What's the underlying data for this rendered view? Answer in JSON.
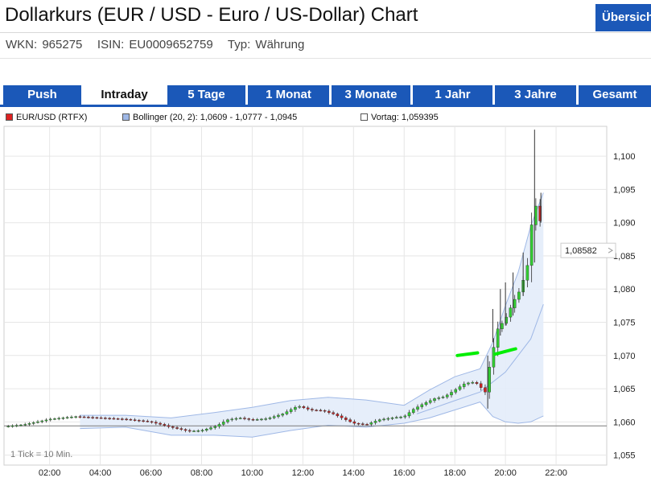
{
  "header": {
    "title": "Dollarkurs (EUR / USD - Euro / US-Dollar) Chart",
    "overview_label": "Übersicht",
    "wkn": "WKN: 965275",
    "isin": "ISIN: EU0009652759",
    "typ": "Typ: Währung"
  },
  "tabs": [
    "Push",
    "Intraday",
    "5 Tage",
    "1 Monat",
    "3 Monate",
    "1 Jahr",
    "3 Jahre",
    "Gesamt"
  ],
  "active_tab": "Intraday",
  "colors": {
    "tab_blue": "#1b58b8",
    "candle_up": "#33cc33",
    "candle_down": "#cc2222",
    "bollinger_fill": "#e3ecf9",
    "bollinger_line": "#9fb8e6",
    "prev_close_line": "#888888",
    "highlight_green": "#00ee00"
  },
  "chart_data": {
    "type": "candlestick",
    "legend": [
      {
        "label": "EUR/USD (RTFX)",
        "color": "#dd2222"
      },
      {
        "label": "Bollinger (20, 2): 1,0609 - 1,0777 - 1,0945",
        "color": "#9fb8e6"
      },
      {
        "label": "Vortag: 1,059395",
        "color": "#ffffff"
      }
    ],
    "y_ticks": [
      "1,055",
      "1,060",
      "1,065",
      "1,070",
      "1,075",
      "1,080",
      "1,085",
      "1,090",
      "1,095",
      "1,100"
    ],
    "y_tick_values": [
      1.055,
      1.06,
      1.065,
      1.07,
      1.075,
      1.08,
      1.085,
      1.09,
      1.095,
      1.1
    ],
    "x_ticks": [
      "02:00",
      "04:00",
      "06:00",
      "08:00",
      "10:00",
      "12:00",
      "14:00",
      "16:00",
      "18:00",
      "20:00",
      "22:00"
    ],
    "x_tick_hours": [
      2,
      4,
      6,
      8,
      10,
      12,
      14,
      16,
      18,
      20,
      22
    ],
    "x_range_hours": [
      0.2,
      24
    ],
    "y_range": [
      1.0535,
      1.1045
    ],
    "prev_close": 1.059395,
    "last_price_label": "1,08582",
    "last_price": 1.08582,
    "tick_note": "1 Tick = 10 Min.",
    "grid": true,
    "close_path": [
      [
        0.2,
        1.0593
      ],
      [
        1.0,
        1.0596
      ],
      [
        2.0,
        1.0604
      ],
      [
        3.0,
        1.0608
      ],
      [
        4.0,
        1.0606
      ],
      [
        5.0,
        1.0604
      ],
      [
        6.0,
        1.06
      ],
      [
        6.8,
        1.0592
      ],
      [
        7.5,
        1.0586
      ],
      [
        8.0,
        1.0587
      ],
      [
        8.6,
        1.0594
      ],
      [
        9.0,
        1.0603
      ],
      [
        9.5,
        1.0606
      ],
      [
        10.0,
        1.0603
      ],
      [
        10.6,
        1.0605
      ],
      [
        11.2,
        1.0612
      ],
      [
        11.8,
        1.0624
      ],
      [
        12.3,
        1.0618
      ],
      [
        12.8,
        1.0617
      ],
      [
        13.2,
        1.0612
      ],
      [
        13.6,
        1.0605
      ],
      [
        14.0,
        1.0598
      ],
      [
        14.5,
        1.0596
      ],
      [
        15.0,
        1.0603
      ],
      [
        15.5,
        1.0606
      ],
      [
        16.0,
        1.0608
      ],
      [
        16.4,
        1.062
      ],
      [
        16.8,
        1.0628
      ],
      [
        17.2,
        1.0635
      ],
      [
        17.6,
        1.0638
      ],
      [
        18.0,
        1.0648
      ],
      [
        18.4,
        1.0658
      ],
      [
        18.8,
        1.066
      ],
      [
        19.0,
        1.0653
      ],
      [
        19.2,
        1.0645
      ],
      [
        19.4,
        1.069
      ],
      [
        19.7,
        1.074
      ],
      [
        20.0,
        1.0755
      ],
      [
        20.3,
        1.078
      ],
      [
        20.6,
        1.08
      ],
      [
        20.9,
        1.084
      ],
      [
        21.1,
        1.0925
      ],
      [
        21.3,
        1.0925
      ],
      [
        21.5,
        1.0858
      ]
    ],
    "spikes": [
      [
        19.3,
        1.062,
        1.07
      ],
      [
        19.5,
        1.072,
        1.077
      ],
      [
        19.8,
        1.073,
        1.08
      ],
      [
        20.0,
        1.0745,
        1.081
      ],
      [
        20.3,
        1.076,
        1.0825
      ],
      [
        20.7,
        1.079,
        1.0855
      ],
      [
        21.15,
        1.084,
        1.104
      ],
      [
        21.4,
        1.09,
        1.0945
      ]
    ],
    "bollinger_upper": [
      [
        3.2,
        1.061
      ],
      [
        5.0,
        1.061
      ],
      [
        6.8,
        1.0606
      ],
      [
        8.5,
        1.0614
      ],
      [
        10.0,
        1.0622
      ],
      [
        11.5,
        1.0632
      ],
      [
        13.0,
        1.0637
      ],
      [
        14.5,
        1.0633
      ],
      [
        16.0,
        1.0625
      ],
      [
        17.0,
        1.0648
      ],
      [
        18.0,
        1.0668
      ],
      [
        19.0,
        1.068
      ],
      [
        19.5,
        1.072
      ],
      [
        20.0,
        1.0775
      ],
      [
        20.5,
        1.0825
      ],
      [
        21.0,
        1.0895
      ],
      [
        21.5,
        1.0945
      ]
    ],
    "bollinger_lower": [
      [
        3.2,
        1.059
      ],
      [
        5.0,
        1.0592
      ],
      [
        6.8,
        1.058
      ],
      [
        8.5,
        1.058
      ],
      [
        10.0,
        1.0577
      ],
      [
        11.5,
        1.0587
      ],
      [
        13.0,
        1.0595
      ],
      [
        14.5,
        1.0592
      ],
      [
        16.0,
        1.0598
      ],
      [
        17.0,
        1.0606
      ],
      [
        18.0,
        1.0618
      ],
      [
        19.0,
        1.063
      ],
      [
        19.5,
        1.0608
      ],
      [
        20.0,
        1.06
      ],
      [
        20.5,
        1.0598
      ],
      [
        21.0,
        1.06
      ],
      [
        21.5,
        1.0609
      ]
    ],
    "bollinger_middle": [
      [
        16.5,
        1.0612
      ],
      [
        18.0,
        1.0632
      ],
      [
        19.0,
        1.0645
      ],
      [
        20.0,
        1.0675
      ],
      [
        21.0,
        1.0725
      ],
      [
        21.5,
        1.0777
      ]
    ],
    "highlights": [
      [
        [
          18.1,
          1.07
        ],
        [
          18.9,
          1.0704
        ]
      ],
      [
        [
          19.6,
          1.0702
        ],
        [
          20.4,
          1.071
        ]
      ]
    ]
  }
}
